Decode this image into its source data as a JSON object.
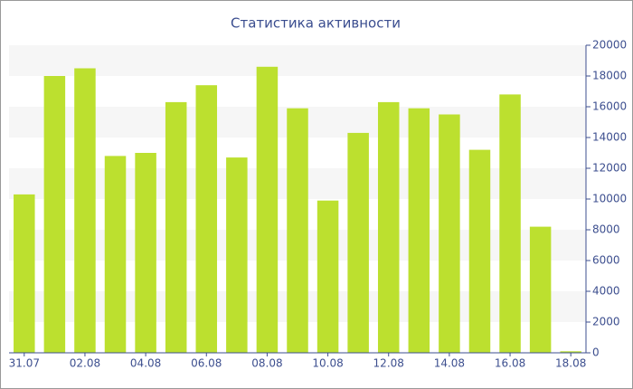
{
  "chart_data": {
    "type": "bar",
    "title": "Статистика активности",
    "categories": [
      "31.07",
      null,
      "02.08",
      null,
      "04.08",
      null,
      "06.08",
      null,
      "08.08",
      null,
      "10.08",
      null,
      "12.08",
      null,
      "14.08",
      null,
      "16.08",
      null,
      "18.08"
    ],
    "values": [
      10300,
      18000,
      18500,
      12800,
      13000,
      16300,
      17400,
      12700,
      18600,
      15900,
      9900,
      14300,
      16300,
      15900,
      15500,
      13200,
      16800,
      8200,
      100
    ],
    "color": "#bce02f",
    "ylim": [
      0,
      20000
    ],
    "yticks": [
      0,
      2000,
      4000,
      6000,
      8000,
      10000,
      12000,
      14000,
      16000,
      18000,
      20000
    ],
    "grid": true
  }
}
